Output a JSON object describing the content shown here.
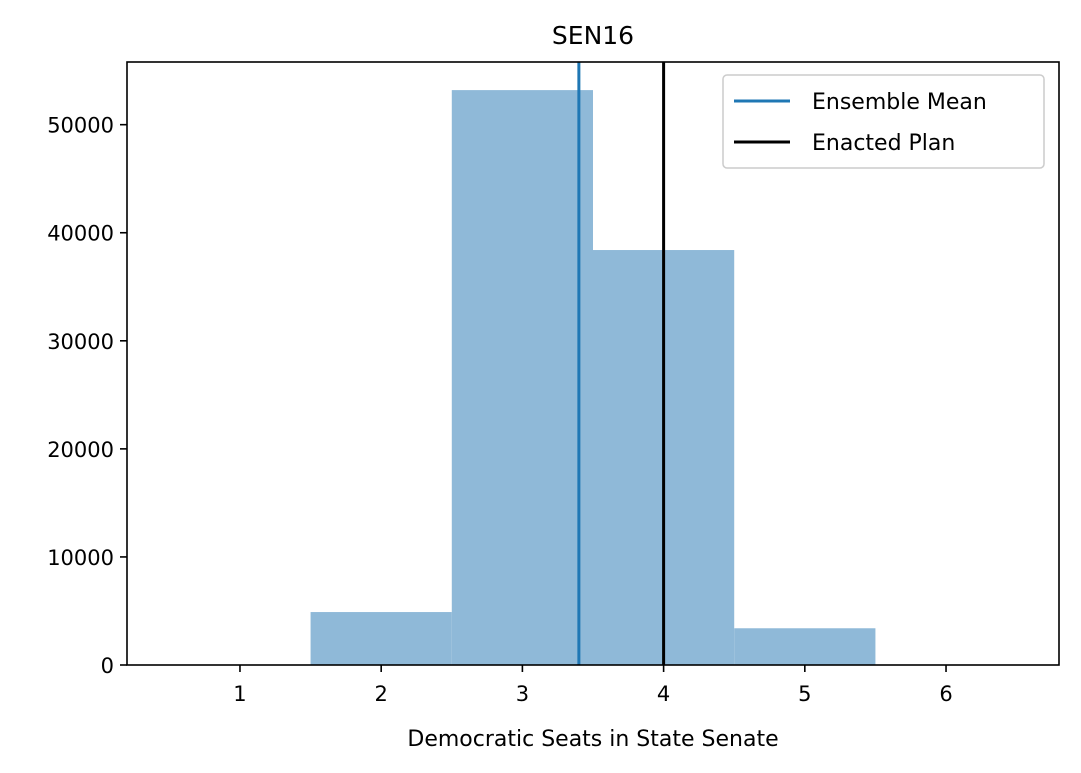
{
  "chart_data": {
    "type": "bar",
    "title": "SEN16",
    "xlabel": "Democratic Seats in State Senate",
    "ylabel": "",
    "bins": [
      {
        "x0": 1.5,
        "x1": 2.5,
        "value": 4900
      },
      {
        "x0": 2.5,
        "x1": 3.5,
        "value": 53200
      },
      {
        "x0": 3.5,
        "x1": 4.5,
        "value": 38400
      },
      {
        "x0": 4.5,
        "x1": 5.5,
        "value": 3400
      }
    ],
    "xlim": [
      0.2,
      6.8
    ],
    "ylim": [
      0,
      55800
    ],
    "xticks": [
      1,
      2,
      3,
      4,
      5,
      6
    ],
    "yticks": [
      0,
      10000,
      20000,
      30000,
      40000,
      50000
    ],
    "bar_color": "#8fb9d8",
    "reference_lines": [
      {
        "name": "Ensemble Mean",
        "x": 3.4,
        "color": "#1f77b4"
      },
      {
        "name": "Enacted Plan",
        "x": 4.0,
        "color": "#000000"
      }
    ],
    "legend_position": "top-right",
    "grid": false
  }
}
